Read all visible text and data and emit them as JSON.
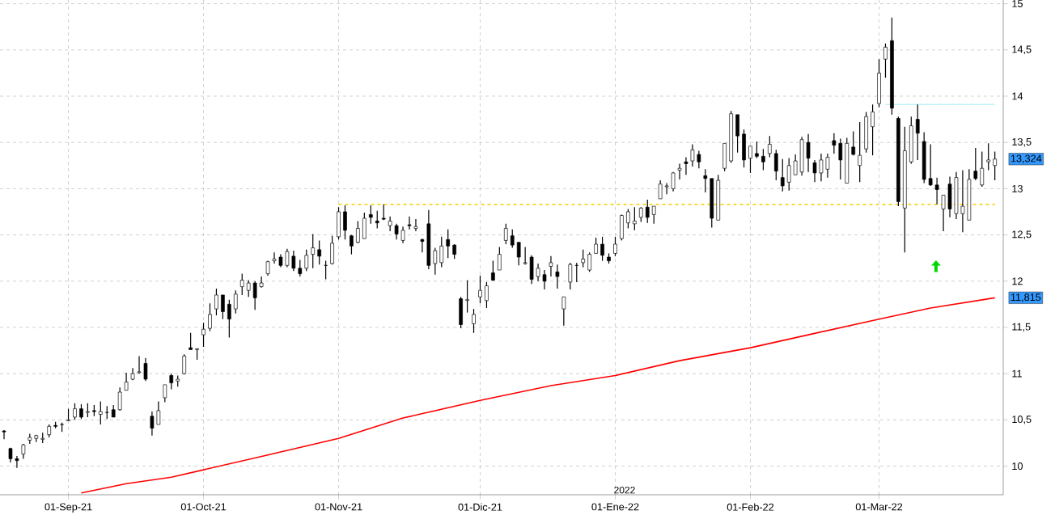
{
  "chart_data": {
    "type": "candlestick",
    "categories": [
      null,
      null,
      null,
      null,
      null,
      null,
      null,
      null,
      null,
      null,
      "01-Sep-21",
      null,
      null,
      null,
      null,
      null,
      null,
      null,
      null,
      null,
      null,
      null,
      null,
      null,
      null,
      null,
      null,
      null,
      null,
      null,
      null,
      "01-Oct-21",
      null,
      null,
      null,
      null,
      null,
      null,
      null,
      null,
      null,
      null,
      null,
      null,
      null,
      null,
      null,
      null,
      null,
      null,
      null,
      null,
      "01-Nov-21",
      null,
      null,
      null,
      null,
      null,
      null,
      null,
      null,
      null,
      null,
      null,
      null,
      null,
      null,
      null,
      null,
      null,
      null,
      null,
      null,
      null,
      "01-Dic-21",
      null,
      null,
      null,
      null,
      null,
      null,
      null,
      null,
      null,
      null,
      null,
      null,
      null,
      null,
      null,
      null,
      null,
      null,
      null,
      null,
      "01-Ene-22",
      null,
      null,
      null,
      null,
      null,
      null,
      null,
      null,
      null,
      null,
      null,
      null,
      null,
      null,
      null,
      null,
      null,
      null,
      null,
      null,
      "01-Feb-22",
      null,
      null,
      null,
      null,
      null,
      null,
      null,
      null,
      null,
      null,
      null,
      null,
      null,
      null,
      null,
      null,
      null,
      null,
      null,
      "01-Mar-22",
      null,
      null,
      null,
      null,
      null,
      null,
      null,
      null,
      null,
      null,
      null,
      null,
      null,
      null,
      null,
      null,
      null,
      null
    ],
    "ohlc": [
      [
        10.38,
        10.39,
        10.29,
        10.37
      ],
      [
        10.19,
        10.2,
        10.04,
        10.08
      ],
      [
        10.08,
        10.11,
        9.98,
        10.06
      ],
      [
        10.13,
        10.24,
        10.08,
        10.23
      ],
      [
        10.28,
        10.35,
        10.24,
        10.31
      ],
      [
        10.3,
        10.34,
        10.26,
        10.33
      ],
      [
        10.29,
        10.36,
        10.25,
        10.3
      ],
      [
        10.34,
        10.45,
        10.31,
        10.43
      ],
      [
        10.44,
        10.48,
        10.41,
        10.43
      ],
      [
        10.45,
        10.47,
        10.37,
        10.45
      ],
      [
        10.49,
        10.62,
        10.49,
        10.5
      ],
      [
        10.53,
        10.68,
        10.5,
        10.62
      ],
      [
        10.62,
        10.67,
        10.51,
        10.53
      ],
      [
        10.58,
        10.68,
        10.53,
        10.59
      ],
      [
        10.6,
        10.66,
        10.54,
        10.59
      ],
      [
        10.56,
        10.7,
        10.45,
        10.59
      ],
      [
        10.58,
        10.65,
        10.51,
        10.58
      ],
      [
        10.61,
        10.66,
        10.53,
        10.53
      ],
      [
        10.61,
        10.85,
        10.6,
        10.8
      ],
      [
        10.82,
        11.01,
        10.82,
        10.91
      ],
      [
        10.94,
        11.06,
        10.93,
        11.0
      ],
      [
        11.01,
        11.19,
        11.0,
        11.02
      ],
      [
        11.11,
        11.17,
        10.92,
        10.94
      ],
      [
        10.54,
        10.59,
        10.33,
        10.41
      ],
      [
        10.45,
        10.7,
        10.45,
        10.6
      ],
      [
        10.74,
        10.88,
        10.69,
        10.88
      ],
      [
        10.98,
        11.0,
        10.83,
        10.9
      ],
      [
        10.92,
        10.98,
        10.86,
        10.94
      ],
      [
        11.0,
        11.21,
        10.99,
        11.19
      ],
      [
        11.28,
        11.44,
        11.26,
        11.26
      ],
      [
        11.26,
        11.27,
        11.15,
        11.27
      ],
      [
        11.42,
        11.55,
        11.29,
        11.48
      ],
      [
        11.49,
        11.76,
        11.46,
        11.64
      ],
      [
        11.7,
        11.92,
        11.63,
        11.85
      ],
      [
        11.85,
        11.85,
        11.59,
        11.67
      ],
      [
        11.75,
        11.8,
        11.39,
        11.59
      ],
      [
        11.7,
        11.9,
        11.65,
        11.86
      ],
      [
        11.94,
        12.08,
        11.85,
        12.01
      ],
      [
        11.9,
        12.01,
        11.83,
        11.98
      ],
      [
        11.98,
        12.0,
        11.69,
        11.82
      ],
      [
        11.94,
        12.05,
        11.93,
        11.98
      ],
      [
        12.08,
        12.22,
        12.06,
        12.21
      ],
      [
        12.22,
        12.31,
        12.19,
        12.24
      ],
      [
        12.26,
        12.29,
        12.15,
        12.17
      ],
      [
        12.17,
        12.35,
        12.15,
        12.32
      ],
      [
        12.27,
        12.33,
        12.11,
        12.14
      ],
      [
        12.14,
        12.23,
        12.05,
        12.08
      ],
      [
        12.14,
        12.34,
        12.11,
        12.28
      ],
      [
        12.29,
        12.51,
        12.14,
        12.36
      ],
      [
        12.34,
        12.44,
        12.18,
        12.27
      ],
      [
        12.17,
        12.22,
        12.02,
        12.17
      ],
      [
        12.19,
        12.49,
        12.18,
        12.41
      ],
      [
        12.48,
        12.8,
        12.45,
        12.75
      ],
      [
        12.75,
        12.82,
        12.45,
        12.55
      ],
      [
        12.49,
        12.5,
        12.29,
        12.38
      ],
      [
        12.42,
        12.65,
        12.41,
        12.57
      ],
      [
        12.46,
        12.74,
        12.46,
        12.68
      ],
      [
        12.72,
        12.82,
        12.62,
        12.69
      ],
      [
        12.65,
        12.76,
        12.57,
        12.63
      ],
      [
        12.68,
        12.83,
        12.66,
        12.67
      ],
      [
        12.6,
        12.7,
        12.54,
        12.65
      ],
      [
        12.6,
        12.62,
        12.45,
        12.51
      ],
      [
        12.44,
        12.59,
        12.41,
        12.55
      ],
      [
        12.61,
        12.7,
        12.56,
        12.6
      ],
      [
        12.57,
        12.67,
        12.54,
        12.59
      ],
      [
        12.45,
        12.46,
        12.31,
        12.43
      ],
      [
        12.62,
        12.77,
        12.13,
        12.17
      ],
      [
        12.19,
        12.36,
        12.07,
        12.33
      ],
      [
        12.2,
        12.48,
        12.15,
        12.38
      ],
      [
        12.45,
        12.56,
        12.25,
        12.38
      ],
      [
        12.39,
        12.4,
        12.24,
        12.29
      ],
      [
        11.81,
        11.83,
        11.49,
        11.53
      ],
      [
        11.79,
        12.01,
        11.66,
        11.8
      ],
      [
        11.54,
        11.7,
        11.44,
        11.64
      ],
      [
        11.83,
        12.06,
        11.76,
        11.9
      ],
      [
        11.79,
        11.99,
        11.71,
        11.95
      ],
      [
        12.09,
        12.22,
        12.01,
        12.01
      ],
      [
        12.12,
        12.37,
        12.12,
        12.29
      ],
      [
        12.44,
        12.62,
        12.4,
        12.57
      ],
      [
        12.49,
        12.56,
        12.36,
        12.39
      ],
      [
        12.42,
        12.42,
        12.17,
        12.26
      ],
      [
        12.19,
        12.37,
        12.18,
        12.2
      ],
      [
        12.26,
        12.28,
        11.97,
        12.02
      ],
      [
        12.05,
        12.19,
        12.0,
        12.14
      ],
      [
        12.07,
        12.12,
        11.91,
        12.0
      ],
      [
        12.16,
        12.27,
        12.05,
        12.2
      ],
      [
        12.1,
        12.18,
        11.92,
        12.05
      ],
      [
        11.7,
        11.83,
        11.52,
        11.83
      ],
      [
        11.99,
        12.2,
        11.91,
        12.18
      ],
      [
        12.17,
        12.2,
        11.99,
        12.17
      ],
      [
        12.2,
        12.34,
        12.15,
        12.24
      ],
      [
        12.12,
        12.31,
        12.1,
        12.29
      ],
      [
        12.3,
        12.47,
        12.3,
        12.4
      ],
      [
        12.4,
        12.48,
        12.22,
        12.28
      ],
      [
        12.26,
        12.3,
        12.19,
        12.22
      ],
      [
        12.3,
        12.48,
        12.27,
        12.4
      ],
      [
        12.46,
        12.72,
        12.44,
        12.71
      ],
      [
        12.63,
        12.78,
        12.57,
        12.75
      ],
      [
        12.62,
        12.8,
        12.55,
        12.65
      ],
      [
        12.69,
        12.8,
        12.64,
        12.79
      ],
      [
        12.8,
        12.88,
        12.63,
        12.69
      ],
      [
        12.72,
        12.81,
        12.62,
        12.81
      ],
      [
        12.89,
        13.09,
        12.89,
        13.05
      ],
      [
        13.02,
        13.06,
        12.94,
        13.03
      ],
      [
        13.0,
        13.18,
        12.97,
        13.17
      ],
      [
        13.2,
        13.27,
        13.1,
        13.22
      ],
      [
        13.29,
        13.34,
        13.15,
        13.27
      ],
      [
        13.3,
        13.48,
        13.24,
        13.42
      ],
      [
        13.37,
        13.41,
        13.22,
        13.29
      ],
      [
        13.14,
        13.21,
        12.96,
        13.11
      ],
      [
        13.11,
        13.11,
        12.58,
        12.68
      ],
      [
        12.66,
        13.15,
        12.66,
        13.09
      ],
      [
        13.22,
        13.49,
        13.19,
        13.49
      ],
      [
        13.3,
        13.84,
        13.28,
        13.81
      ],
      [
        13.8,
        13.8,
        13.39,
        13.57
      ],
      [
        13.59,
        13.64,
        13.23,
        13.31
      ],
      [
        13.33,
        13.46,
        13.17,
        13.46
      ],
      [
        13.38,
        13.51,
        13.33,
        13.35
      ],
      [
        13.35,
        13.43,
        13.2,
        13.29
      ],
      [
        13.38,
        13.57,
        13.34,
        13.48
      ],
      [
        13.38,
        13.42,
        13.09,
        13.19
      ],
      [
        13.12,
        13.32,
        12.97,
        13.03
      ],
      [
        13.07,
        13.33,
        12.98,
        13.25
      ],
      [
        13.15,
        13.37,
        13.15,
        13.3
      ],
      [
        13.18,
        13.56,
        13.14,
        13.53
      ],
      [
        13.5,
        13.59,
        13.18,
        13.33
      ],
      [
        13.28,
        13.31,
        13.07,
        13.17
      ],
      [
        13.17,
        13.38,
        13.08,
        13.31
      ],
      [
        13.21,
        13.38,
        13.12,
        13.34
      ],
      [
        13.52,
        13.6,
        13.38,
        13.47
      ],
      [
        13.49,
        13.54,
        13.1,
        13.31
      ],
      [
        13.06,
        13.55,
        13.06,
        13.49
      ],
      [
        13.45,
        13.62,
        13.36,
        13.37
      ],
      [
        13.25,
        13.72,
        13.07,
        13.36
      ],
      [
        13.43,
        13.83,
        13.39,
        13.78
      ],
      [
        13.67,
        13.91,
        13.36,
        13.83
      ],
      [
        13.92,
        14.4,
        13.88,
        14.25
      ],
      [
        14.4,
        14.57,
        14.2,
        14.53
      ],
      [
        14.6,
        14.85,
        13.8,
        13.87
      ],
      [
        13.76,
        13.78,
        12.81,
        12.86
      ],
      [
        12.79,
        13.67,
        12.31,
        13.41
      ],
      [
        13.29,
        13.78,
        13.27,
        13.68
      ],
      [
        13.75,
        13.91,
        13.31,
        13.6
      ],
      [
        13.51,
        13.61,
        13.06,
        13.1
      ],
      [
        13.11,
        13.48,
        13.03,
        13.04
      ],
      [
        13.04,
        13.12,
        12.83,
        12.99
      ],
      [
        12.78,
        12.93,
        12.54,
        12.93
      ],
      [
        13.05,
        13.13,
        12.69,
        12.78
      ],
      [
        12.73,
        13.18,
        12.67,
        13.12
      ],
      [
        12.73,
        13.2,
        12.53,
        12.81
      ],
      [
        12.66,
        13.21,
        12.66,
        13.1
      ],
      [
        13.19,
        13.44,
        13.09,
        13.11
      ],
      [
        13.04,
        13.4,
        13.02,
        13.22
      ],
      [
        13.29,
        13.49,
        13.2,
        13.31
      ],
      [
        13.25,
        13.4,
        13.09,
        13.32
      ]
    ],
    "series": [
      {
        "type": "line",
        "color": "#ff0000",
        "values": [
          null,
          null,
          null,
          null,
          null,
          null,
          null,
          null,
          null,
          null,
          null,
          null,
          9.71,
          null,
          null,
          null,
          null,
          null,
          null,
          9.81,
          null,
          null,
          null,
          null,
          null,
          null,
          9.88,
          null,
          null,
          null,
          null,
          9.96,
          null,
          null,
          null,
          null,
          null,
          null,
          null,
          null,
          null,
          10.12,
          null,
          null,
          null,
          null,
          null,
          null,
          null,
          null,
          null,
          null,
          10.3,
          null,
          null,
          null,
          null,
          null,
          null,
          null,
          null,
          null,
          10.52,
          null,
          null,
          null,
          null,
          null,
          null,
          null,
          null,
          null,
          null,
          null,
          10.71,
          null,
          null,
          null,
          null,
          null,
          null,
          null,
          null,
          null,
          null,
          10.87,
          null,
          null,
          null,
          null,
          null,
          null,
          null,
          null,
          null,
          10.98,
          null,
          null,
          null,
          null,
          null,
          null,
          null,
          null,
          null,
          11.14,
          null,
          null,
          null,
          null,
          null,
          null,
          null,
          null,
          null,
          null,
          11.28,
          null,
          null,
          null,
          null,
          null,
          null,
          null,
          null,
          11.42,
          null,
          null,
          null,
          null,
          null,
          null,
          null,
          null,
          null,
          null,
          11.59,
          null,
          null,
          null,
          null,
          null,
          null,
          null,
          11.71,
          null,
          null,
          null,
          null,
          null,
          null,
          null,
          null,
          null,
          11.82
        ]
      },
      {
        "type": "line",
        "color": "#f5d000",
        "line_style": "dashed",
        "values": [
          null,
          null,
          null,
          null,
          null,
          null,
          null,
          null,
          null,
          null,
          null,
          null,
          null,
          null,
          null,
          null,
          null,
          null,
          null,
          null,
          null,
          null,
          null,
          null,
          null,
          null,
          null,
          null,
          null,
          null,
          null,
          null,
          null,
          null,
          null,
          null,
          null,
          null,
          null,
          null,
          null,
          null,
          null,
          null,
          null,
          null,
          null,
          null,
          null,
          null,
          null,
          null,
          12.83,
          12.83,
          12.83,
          12.83,
          12.83,
          12.83,
          12.83,
          12.83,
          12.83,
          12.83,
          12.83,
          12.83,
          12.83,
          12.83,
          12.83,
          12.83,
          12.83,
          12.83,
          12.83,
          12.83,
          12.83,
          12.83,
          12.83,
          12.83,
          12.83,
          12.83,
          12.83,
          12.83,
          12.83,
          12.83,
          12.83,
          12.83,
          12.83,
          12.83,
          12.83,
          12.83,
          12.83,
          12.83,
          12.83,
          12.83,
          12.83,
          12.83,
          12.83,
          12.83,
          12.83,
          12.83,
          12.83,
          12.83,
          12.83,
          12.83,
          12.83,
          12.83,
          12.83,
          12.83,
          12.83,
          12.83,
          12.83,
          12.83,
          12.83,
          12.83,
          12.83,
          12.83,
          12.83,
          12.83,
          12.83,
          12.83,
          12.83,
          12.83,
          12.83,
          12.83,
          12.83,
          12.83,
          12.83,
          12.83,
          12.83,
          12.83,
          12.83,
          12.83,
          12.83,
          12.83,
          12.83,
          12.83,
          12.83,
          12.83,
          12.83,
          12.83,
          12.83,
          12.83,
          12.83,
          12.83,
          12.83,
          12.83,
          12.83,
          12.83,
          12.83,
          12.83,
          12.83,
          12.83,
          12.83,
          12.83,
          12.83,
          12.83,
          12.83
        ]
      },
      {
        "type": "line",
        "color": "#bff3f7",
        "values": [
          null,
          null,
          null,
          null,
          null,
          null,
          null,
          null,
          null,
          null,
          null,
          null,
          null,
          null,
          null,
          null,
          null,
          null,
          null,
          null,
          null,
          null,
          null,
          null,
          null,
          null,
          null,
          null,
          null,
          null,
          null,
          null,
          null,
          null,
          null,
          null,
          null,
          null,
          null,
          null,
          null,
          null,
          null,
          null,
          null,
          null,
          null,
          null,
          null,
          null,
          null,
          null,
          null,
          null,
          null,
          null,
          null,
          null,
          null,
          null,
          null,
          null,
          null,
          null,
          null,
          null,
          null,
          null,
          null,
          null,
          null,
          null,
          null,
          null,
          null,
          null,
          null,
          null,
          null,
          null,
          null,
          null,
          null,
          null,
          null,
          null,
          null,
          null,
          null,
          null,
          null,
          null,
          null,
          null,
          null,
          null,
          null,
          null,
          null,
          null,
          null,
          null,
          null,
          null,
          null,
          null,
          null,
          null,
          null,
          null,
          null,
          null,
          null,
          null,
          null,
          null,
          null,
          null,
          null,
          null,
          null,
          null,
          null,
          null,
          null,
          null,
          null,
          null,
          null,
          null,
          null,
          null,
          null,
          null,
          null,
          null,
          null,
          13.91,
          13.91,
          13.91,
          13.91,
          13.91,
          13.91,
          13.91,
          13.91,
          13.91,
          13.91,
          13.91,
          13.91,
          13.91,
          13.91,
          13.91,
          13.91,
          13.91,
          13.91
        ]
      }
    ],
    "ylim": [
      9.69,
      15.04
    ],
    "yticks": [
      10,
      {
        "value": 10.5,
        "label": "10,5"
      },
      11,
      {
        "value": 11.5,
        "label": "11,5"
      },
      12,
      {
        "value": 12.5,
        "label": "12,5"
      },
      13,
      {
        "value": 13.5,
        "label": "13,5"
      },
      14,
      {
        "value": 14.5,
        "label": "14,5"
      },
      15
    ],
    "grid": true,
    "annotations": [
      "2022",
      "13,324",
      "11,815"
    ]
  }
}
